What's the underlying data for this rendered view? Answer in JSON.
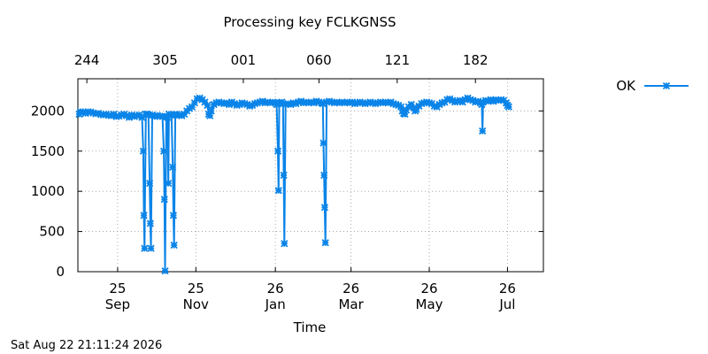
{
  "chart_data": {
    "type": "line",
    "title": "Processing key FCLKGNSS",
    "xlabel": "Time",
    "ylabel": "",
    "ylim": [
      0,
      2400
    ],
    "yticks": [
      0,
      500,
      1000,
      1500,
      2000
    ],
    "xlim": [
      -7,
      356
    ],
    "x_axis_note": "x values are days since 2025-09-01",
    "x_ticks_bottom": [
      {
        "x": 24,
        "line1": "25",
        "line2": "Sep"
      },
      {
        "x": 85,
        "line1": "25",
        "line2": "Nov"
      },
      {
        "x": 147,
        "line1": "26",
        "line2": "Jan"
      },
      {
        "x": 206,
        "line1": "26",
        "line2": "Mar"
      },
      {
        "x": 267,
        "line1": "26",
        "line2": "May"
      },
      {
        "x": 328,
        "line1": "26",
        "line2": "Jul"
      }
    ],
    "x_ticks_top": [
      {
        "x": 0,
        "label": "244"
      },
      {
        "x": 61,
        "label": "305"
      },
      {
        "x": 122,
        "label": "001"
      },
      {
        "x": 181,
        "label": "060"
      },
      {
        "x": 242,
        "label": "121"
      },
      {
        "x": 303,
        "label": "182"
      }
    ],
    "grid": true,
    "legend_position": "top-right",
    "series": [
      {
        "name": "OK",
        "color": "#0a84e8",
        "points": [
          [
            -6,
            1960
          ],
          [
            -5,
            1990
          ],
          [
            -3,
            1985
          ],
          [
            -1,
            1970
          ],
          [
            1,
            1990
          ],
          [
            3,
            1985
          ],
          [
            5,
            1975
          ],
          [
            7,
            1965
          ],
          [
            9,
            1970
          ],
          [
            11,
            1955
          ],
          [
            13,
            1950
          ],
          [
            15,
            1960
          ],
          [
            17,
            1945
          ],
          [
            19,
            1940
          ],
          [
            21,
            1960
          ],
          [
            23,
            1930
          ],
          [
            25,
            1935
          ],
          [
            27,
            1950
          ],
          [
            29,
            1960
          ],
          [
            31,
            1940
          ],
          [
            33,
            1920
          ],
          [
            35,
            1950
          ],
          [
            37,
            1930
          ],
          [
            39,
            1940
          ],
          [
            41,
            1950
          ],
          [
            43,
            1920
          ],
          [
            44,
            1500
          ],
          [
            44.5,
            700
          ],
          [
            45,
            290
          ],
          [
            46,
            1960
          ],
          [
            47,
            1960
          ],
          [
            48,
            1950
          ],
          [
            49,
            1100
          ],
          [
            49.5,
            600
          ],
          [
            50,
            290
          ],
          [
            51,
            1950
          ],
          [
            53,
            1930
          ],
          [
            55,
            1945
          ],
          [
            57,
            1935
          ],
          [
            59,
            1930
          ],
          [
            60,
            1500
          ],
          [
            60.5,
            900
          ],
          [
            61,
            10
          ],
          [
            62,
            1930
          ],
          [
            63,
            1920
          ],
          [
            63.5,
            1100
          ],
          [
            64,
            1960
          ],
          [
            66,
            1950
          ],
          [
            67,
            1300
          ],
          [
            67.5,
            700
          ],
          [
            68,
            330
          ],
          [
            69,
            1950
          ],
          [
            70,
            1960
          ],
          [
            72,
            1950
          ],
          [
            74,
            1940
          ],
          [
            76,
            1960
          ],
          [
            78,
            2000
          ],
          [
            80,
            2030
          ],
          [
            82,
            2050
          ],
          [
            84,
            2100
          ],
          [
            86,
            2150
          ],
          [
            88,
            2160
          ],
          [
            90,
            2140
          ],
          [
            92,
            2110
          ],
          [
            94,
            2070
          ],
          [
            95,
            1960
          ],
          [
            96,
            1940
          ],
          [
            97,
            2000
          ],
          [
            99,
            2080
          ],
          [
            101,
            2100
          ],
          [
            103,
            2110
          ],
          [
            105,
            2100
          ],
          [
            107,
            2090
          ],
          [
            109,
            2100
          ],
          [
            111,
            2080
          ],
          [
            113,
            2110
          ],
          [
            115,
            2090
          ],
          [
            117,
            2070
          ],
          [
            119,
            2080
          ],
          [
            121,
            2100
          ],
          [
            123,
            2090
          ],
          [
            125,
            2080
          ],
          [
            127,
            2060
          ],
          [
            129,
            2070
          ],
          [
            131,
            2090
          ],
          [
            133,
            2100
          ],
          [
            135,
            2110
          ],
          [
            137,
            2120
          ],
          [
            139,
            2100
          ],
          [
            141,
            2110
          ],
          [
            143,
            2100
          ],
          [
            145,
            2110
          ],
          [
            147,
            2100
          ],
          [
            148,
            2080
          ],
          [
            149,
            1500
          ],
          [
            149.5,
            1010
          ],
          [
            150,
            2100
          ],
          [
            152,
            2110
          ],
          [
            153,
            2090
          ],
          [
            153.5,
            1200
          ],
          [
            154,
            350
          ],
          [
            155,
            2080
          ],
          [
            157,
            2090
          ],
          [
            159,
            2080
          ],
          [
            161,
            2100
          ],
          [
            163,
            2090
          ],
          [
            165,
            2110
          ],
          [
            167,
            2120
          ],
          [
            169,
            2100
          ],
          [
            171,
            2110
          ],
          [
            173,
            2100
          ],
          [
            175,
            2110
          ],
          [
            177,
            2100
          ],
          [
            179,
            2120
          ],
          [
            181,
            2110
          ],
          [
            183,
            2100
          ],
          [
            184,
            2090
          ],
          [
            184.5,
            1600
          ],
          [
            185,
            1200
          ],
          [
            185.5,
            800
          ],
          [
            186,
            360
          ],
          [
            187,
            2110
          ],
          [
            189,
            2120
          ],
          [
            191,
            2110
          ],
          [
            193,
            2100
          ],
          [
            195,
            2110
          ],
          [
            197,
            2100
          ],
          [
            199,
            2110
          ],
          [
            201,
            2100
          ],
          [
            203,
            2110
          ],
          [
            205,
            2100
          ],
          [
            207,
            2110
          ],
          [
            209,
            2090
          ],
          [
            211,
            2100
          ],
          [
            213,
            2110
          ],
          [
            215,
            2100
          ],
          [
            217,
            2090
          ],
          [
            219,
            2100
          ],
          [
            221,
            2110
          ],
          [
            223,
            2100
          ],
          [
            225,
            2090
          ],
          [
            227,
            2100
          ],
          [
            229,
            2110
          ],
          [
            231,
            2100
          ],
          [
            233,
            2110
          ],
          [
            235,
            2100
          ],
          [
            237,
            2110
          ],
          [
            239,
            2090
          ],
          [
            241,
            2080
          ],
          [
            243,
            2070
          ],
          [
            245,
            2050
          ],
          [
            246,
            2000
          ],
          [
            247,
            1970
          ],
          [
            248,
            1960
          ],
          [
            249,
            2010
          ],
          [
            251,
            2050
          ],
          [
            253,
            2080
          ],
          [
            255,
            2040
          ],
          [
            256,
            2000
          ],
          [
            257,
            2020
          ],
          [
            259,
            2060
          ],
          [
            261,
            2090
          ],
          [
            263,
            2100
          ],
          [
            265,
            2110
          ],
          [
            267,
            2100
          ],
          [
            269,
            2090
          ],
          [
            271,
            2060
          ],
          [
            273,
            2050
          ],
          [
            275,
            2080
          ],
          [
            277,
            2100
          ],
          [
            279,
            2110
          ],
          [
            281,
            2140
          ],
          [
            283,
            2150
          ],
          [
            285,
            2130
          ],
          [
            287,
            2110
          ],
          [
            289,
            2120
          ],
          [
            291,
            2130
          ],
          [
            293,
            2110
          ],
          [
            295,
            2140
          ],
          [
            297,
            2160
          ],
          [
            299,
            2140
          ],
          [
            301,
            2130
          ],
          [
            303,
            2110
          ],
          [
            305,
            2120
          ],
          [
            307,
            2100
          ],
          [
            308,
            2080
          ],
          [
            308.5,
            1750
          ],
          [
            309,
            2110
          ],
          [
            311,
            2130
          ],
          [
            313,
            2120
          ],
          [
            315,
            2140
          ],
          [
            317,
            2120
          ],
          [
            319,
            2140
          ],
          [
            321,
            2130
          ],
          [
            323,
            2140
          ],
          [
            325,
            2130
          ],
          [
            327,
            2100
          ],
          [
            328,
            2070
          ],
          [
            329,
            2050
          ]
        ]
      }
    ]
  },
  "footer": {
    "timestamp": "Sat Aug 22 21:11:24 2026"
  }
}
